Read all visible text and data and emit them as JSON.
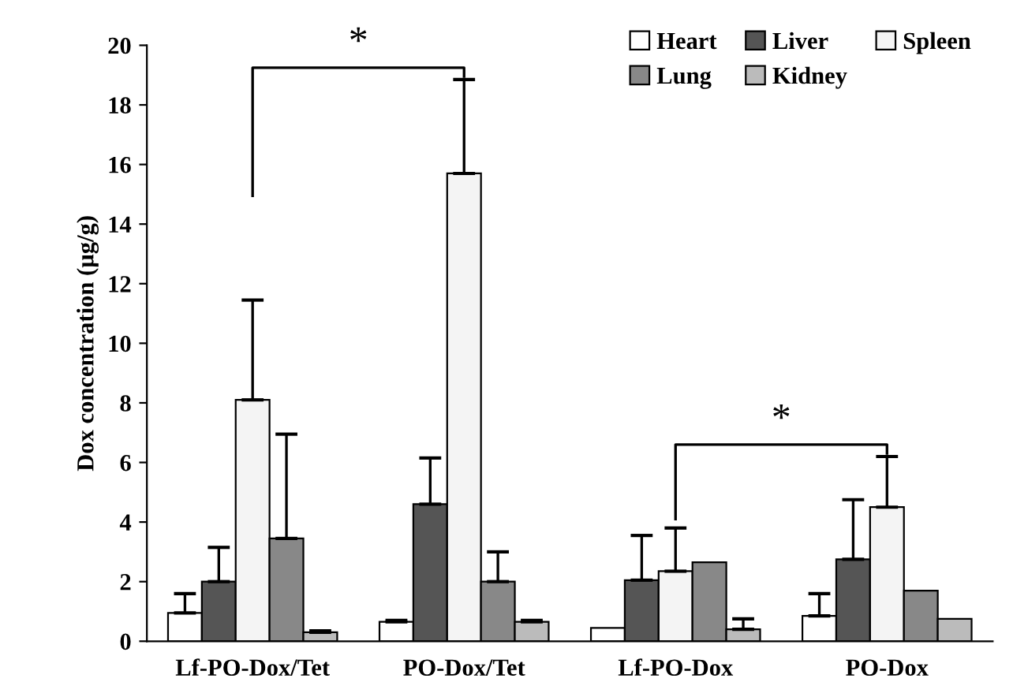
{
  "chart_data": {
    "type": "bar",
    "ylabel": "Dox concentration (µg/g)",
    "categories": [
      "Lf-PO-Dox/Tet",
      "PO-Dox/Tet",
      "Lf-PO-Dox",
      "PO-Dox"
    ],
    "series": [
      {
        "name": "Heart",
        "color": "#ffffff",
        "values": [
          0.95,
          0.65,
          0.45,
          0.85
        ],
        "errors": [
          0.65,
          0.05,
          null,
          0.75
        ]
      },
      {
        "name": "Liver",
        "color": "#555555",
        "values": [
          2.0,
          4.6,
          2.05,
          2.75
        ],
        "errors": [
          1.15,
          1.55,
          1.5,
          2.0
        ]
      },
      {
        "name": "Spleen",
        "color": "#f4f4f4",
        "values": [
          8.1,
          15.7,
          2.35,
          4.5
        ],
        "errors": [
          3.35,
          3.15,
          1.45,
          1.7
        ]
      },
      {
        "name": "Lung",
        "color": "#888888",
        "values": [
          3.45,
          2.0,
          2.65,
          1.7
        ],
        "errors": [
          3.5,
          1.0,
          null,
          null
        ]
      },
      {
        "name": "Kidney",
        "color": "#bbbbbb",
        "values": [
          0.3,
          0.65,
          0.4,
          0.75
        ],
        "errors": [
          0.05,
          0.05,
          0.35,
          null
        ]
      }
    ],
    "ylim": [
      0,
      20
    ],
    "yticks": [
      0,
      2,
      4,
      6,
      8,
      10,
      12,
      14,
      16,
      18,
      20
    ],
    "grid": false,
    "legend": "top right",
    "annotations": [
      "*",
      "*"
    ]
  }
}
